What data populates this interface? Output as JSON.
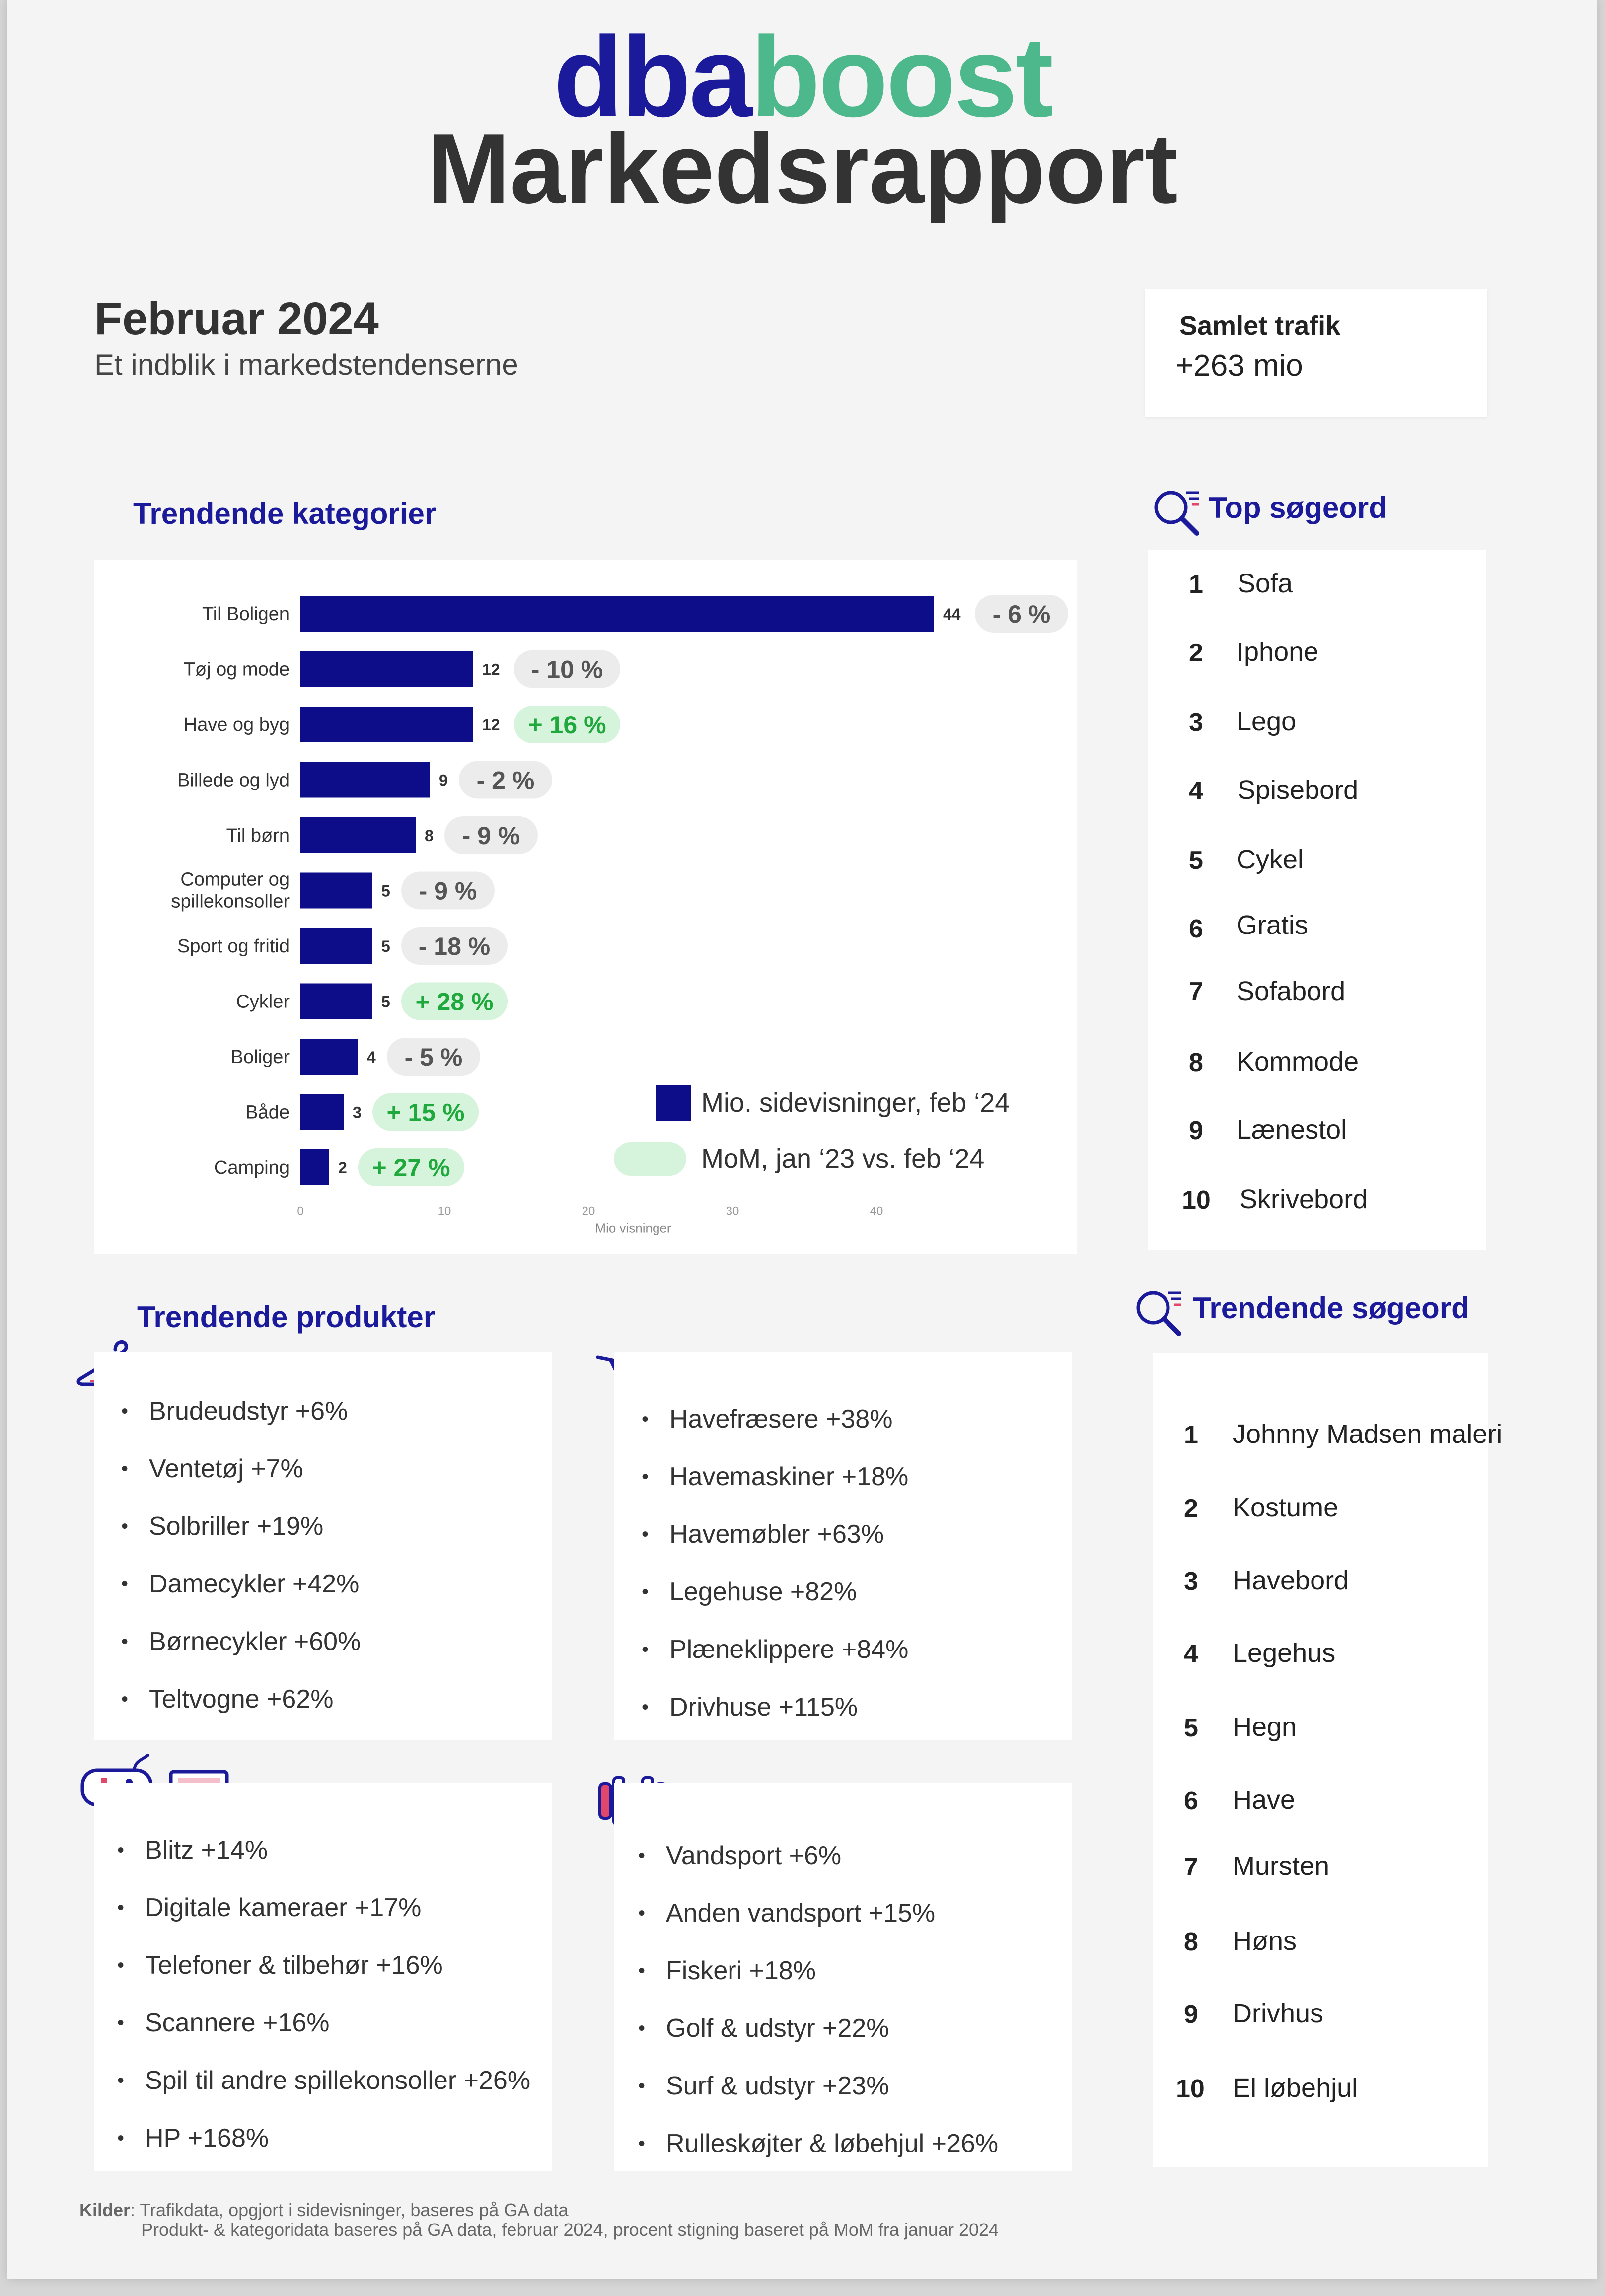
{
  "header": {
    "logo_part1": "dba",
    "logo_part2": "boost",
    "title": "Markedsrapport",
    "month": "Februar 2024",
    "subtitle": "Et indblik i markedstendenserne"
  },
  "traffic": {
    "label": "Samlet trafik",
    "value": "+263 mio"
  },
  "colors": {
    "navy": "#0d0d8a",
    "green_pill": "#d6f3dc",
    "green_text": "#1fa83c",
    "grey_pill": "#ececec",
    "grey_text": "#555555",
    "brand_green": "#4cb88b"
  },
  "trending_categories": {
    "title": "Trendende kategorier",
    "legend_bar": "Mio. sidevisninger, feb ‘24",
    "legend_pill": "MoM, jan ‘23 vs. feb ‘24"
  },
  "chart_data": {
    "type": "bar",
    "orientation": "horizontal",
    "xlabel": "Mio visninger",
    "xlim": [
      0,
      44
    ],
    "xticks": [
      0,
      10,
      20,
      30,
      40
    ],
    "categories": [
      "Til Boligen",
      "Tøj og mode",
      "Have og byg",
      "Billede og lyd",
      "Til børn",
      "Computer og spillekonsoller",
      "Sport og fritid",
      "Cykler",
      "Boliger",
      "Både",
      "Camping"
    ],
    "category_lines": [
      [
        "Til Boligen"
      ],
      [
        "Tøj og mode"
      ],
      [
        "Have og byg"
      ],
      [
        "Billede og lyd"
      ],
      [
        "Til børn"
      ],
      [
        "Computer og",
        "spillekonsoller"
      ],
      [
        "Sport og fritid"
      ],
      [
        "Cykler"
      ],
      [
        "Boliger"
      ],
      [
        "Både"
      ],
      [
        "Camping"
      ]
    ],
    "series": [
      {
        "name": "Mio. sidevisninger, feb ‘24",
        "values": [
          44,
          12,
          12,
          9,
          8,
          5,
          5,
          5,
          4,
          3,
          2
        ]
      },
      {
        "name": "MoM, jan ‘23 vs. feb ‘24",
        "labels": [
          "- 6 %",
          "- 10 %",
          "+ 16 %",
          "- 2 %",
          "- 9 %",
          "- 9 %",
          "- 18 %",
          "+ 28 %",
          "- 5 %",
          "+ 15 %",
          "+ 27 %"
        ]
      }
    ]
  },
  "top_search": {
    "title": "Top søgeord",
    "items": [
      {
        "rank": "1",
        "term": "Sofa"
      },
      {
        "rank": "2",
        "term": "Iphone"
      },
      {
        "rank": "3",
        "term": "Lego"
      },
      {
        "rank": "4",
        "term": "Spisebord"
      },
      {
        "rank": "5",
        "term": "Cykel"
      },
      {
        "rank": "6",
        "term": "Gratis"
      },
      {
        "rank": "7",
        "term": "Sofabord"
      },
      {
        "rank": "8",
        "term": "Kommode"
      },
      {
        "rank": "9",
        "term": "Lænestol"
      },
      {
        "rank": "10",
        "term": "Skrivebord"
      }
    ]
  },
  "trending_products": {
    "title": "Trendende produkter",
    "fashion": [
      "Brudeudstyr +6%",
      "Ventetøj +7%",
      "Solbriller +19%",
      "Damecykler +42%",
      "Børnecykler +60%",
      "Teltvogne +62%"
    ],
    "garden": [
      "Havefræsere +38%",
      "Havemaskiner +18%",
      "Havemøbler +63%",
      "Legehuse +82%",
      "Plæneklippere +84%",
      "Drivhuse +115%"
    ],
    "electronics": [
      "Blitz +14%",
      "Digitale kameraer +17%",
      "Telefoner & tilbehør +16%",
      "Scannere +16%",
      "Spil til andre spillekonsoller +26%",
      "HP +168%"
    ],
    "sports": [
      "Vandsport +6%",
      "Anden vandsport +15%",
      "Fiskeri +18%",
      "Golf & udstyr +22%",
      "Surf & udstyr +23%",
      "Rulleskøjter & løbehjul +26%"
    ]
  },
  "trending_search": {
    "title": "Trendende søgeord",
    "items": [
      {
        "rank": "1",
        "term": "Johnny Madsen maleri"
      },
      {
        "rank": "2",
        "term": "Kostume"
      },
      {
        "rank": "3",
        "term": "Havebord"
      },
      {
        "rank": "4",
        "term": "Legehus"
      },
      {
        "rank": "5",
        "term": "Hegn"
      },
      {
        "rank": "6",
        "term": "Have"
      },
      {
        "rank": "7",
        "term": "Mursten"
      },
      {
        "rank": "8",
        "term": "Høns"
      },
      {
        "rank": "9",
        "term": "Drivhus"
      },
      {
        "rank": "10",
        "term": "El løbehjul"
      }
    ]
  },
  "footer": {
    "label": "Kilder",
    "line1": ": Trafikdata, opgjort i sidevisninger, baseres på GA data",
    "line2": "Produkt- & kategoridata baseres på GA data, februar 2024, procent stigning baseret på MoM fra januar 2024"
  }
}
